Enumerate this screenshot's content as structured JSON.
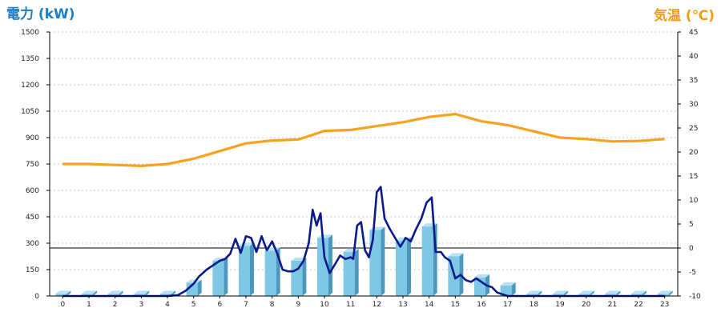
{
  "chart_data": {
    "type": "bar",
    "title_left": "電力 (kW)",
    "title_right": "気温 (℃)",
    "x_ticks": [
      "0",
      "1",
      "2",
      "3",
      "4",
      "5",
      "6",
      "7",
      "8",
      "9",
      "10",
      "11",
      "12",
      "13",
      "14",
      "15",
      "16",
      "17",
      "18",
      "19",
      "20",
      "21",
      "22",
      "23"
    ],
    "y_left": {
      "min": 0,
      "max": 1500,
      "step": 150,
      "ticks": [
        "0",
        "150",
        "300",
        "450",
        "600",
        "750",
        "900",
        "1050",
        "1200",
        "1350",
        "1500"
      ]
    },
    "y_right": {
      "min": -10,
      "max": 45,
      "step": 5,
      "ticks": [
        "-10",
        "-5",
        "0",
        "5",
        "10",
        "15",
        "20",
        "25",
        "30",
        "35",
        "40",
        "45"
      ]
    },
    "grid": true,
    "reference_line": {
      "axis": "right",
      "value": 0
    },
    "bars": {
      "axis": "left",
      "categories": [
        "0",
        "1",
        "2",
        "3",
        "4",
        "5",
        "6",
        "7",
        "8",
        "9",
        "10",
        "11",
        "12",
        "13",
        "14",
        "15",
        "16",
        "17",
        "18",
        "19",
        "20",
        "21",
        "22",
        "23"
      ],
      "values": [
        12,
        12,
        12,
        12,
        12,
        75,
        200,
        285,
        258,
        200,
        330,
        250,
        375,
        315,
        395,
        225,
        105,
        60,
        12,
        12,
        12,
        12,
        12,
        12
      ],
      "color": "#7ec8e6"
    },
    "power_line": {
      "axis": "left",
      "color": "#0a1a8c",
      "x": [
        0,
        1,
        2,
        3,
        4,
        4.4,
        4.7,
        5,
        5.2,
        5.5,
        5.7,
        6,
        6.2,
        6.4,
        6.6,
        6.8,
        7,
        7.2,
        7.4,
        7.6,
        7.8,
        8,
        8.2,
        8.4,
        8.6,
        8.8,
        9,
        9.2,
        9.4,
        9.55,
        9.7,
        9.85,
        10,
        10.2,
        10.4,
        10.6,
        10.8,
        11,
        11.1,
        11.25,
        11.4,
        11.55,
        11.7,
        11.85,
        12,
        12.15,
        12.3,
        12.5,
        12.7,
        12.9,
        13.1,
        13.3,
        13.5,
        13.7,
        13.9,
        14.1,
        14.25,
        14.45,
        14.6,
        14.8,
        15,
        15.2,
        15.4,
        15.6,
        15.8,
        16,
        16.2,
        16.4,
        16.6,
        16.8,
        17,
        17.2,
        17.5,
        18,
        19,
        20,
        21,
        22,
        23
      ],
      "y": [
        0,
        0,
        0,
        0,
        0,
        5,
        30,
        70,
        110,
        150,
        170,
        200,
        210,
        240,
        325,
        245,
        340,
        330,
        250,
        340,
        260,
        310,
        240,
        150,
        140,
        140,
        155,
        200,
        300,
        490,
        400,
        470,
        220,
        130,
        180,
        230,
        210,
        220,
        210,
        400,
        420,
        260,
        220,
        320,
        590,
        620,
        440,
        380,
        330,
        280,
        330,
        310,
        380,
        440,
        530,
        560,
        250,
        250,
        220,
        200,
        100,
        120,
        90,
        80,
        100,
        80,
        60,
        50,
        20,
        10,
        0,
        0,
        0,
        0,
        0,
        0,
        0,
        0,
        0
      ],
      "values_are_approximate": true
    },
    "temp_line": {
      "axis": "right",
      "color": "#f6a21e",
      "x": [
        0,
        1,
        2,
        3,
        4,
        5,
        6,
        7,
        8,
        9,
        10,
        11,
        12,
        13,
        14,
        15,
        16,
        17,
        18,
        19,
        20,
        21,
        22,
        23
      ],
      "y": [
        17.5,
        17.5,
        17.3,
        17.1,
        17.5,
        18.6,
        20.2,
        21.8,
        22.4,
        22.6,
        24.4,
        24.6,
        25.4,
        26.2,
        27.3,
        27.9,
        26.4,
        25.6,
        24.3,
        23.0,
        22.7,
        22.2,
        22.3,
        22.7
      ]
    }
  }
}
